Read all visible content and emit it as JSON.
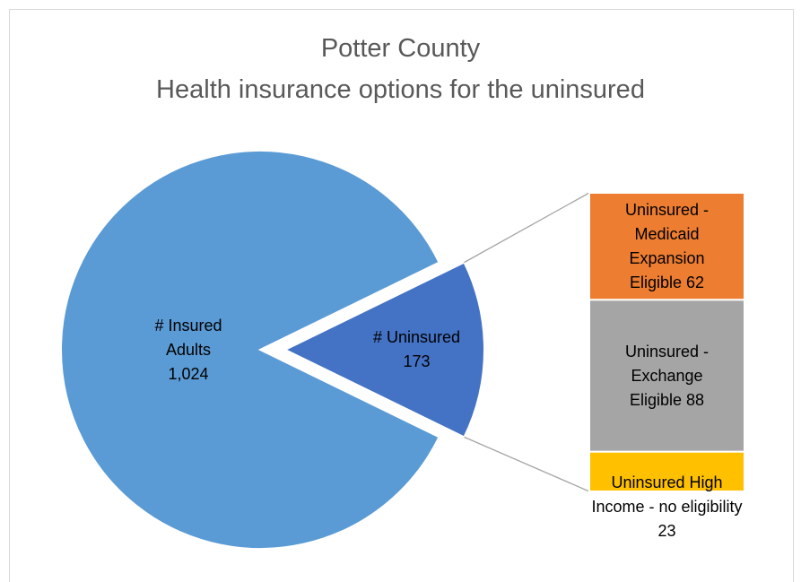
{
  "chart_data": {
    "type": "pie",
    "title": "Potter County",
    "subtitle": "Health insurance options for the uninsured",
    "categories": [
      "# Insured Adults",
      "# Uninsured"
    ],
    "values": [
      1024,
      173
    ],
    "value_labels": [
      "1,024",
      "173"
    ],
    "colors": [
      "#5b9bd5",
      "#4472c4"
    ],
    "breakdown": {
      "categories": [
        "Uninsured - Medicaid Expansion Eligible",
        "Uninsured - Exchange Eligible",
        "Uninsured High Income - no eligibility"
      ],
      "values": [
        62,
        88,
        23
      ],
      "colors": [
        "#ed7d31",
        "#a5a5a5",
        "#ffc000"
      ]
    }
  }
}
